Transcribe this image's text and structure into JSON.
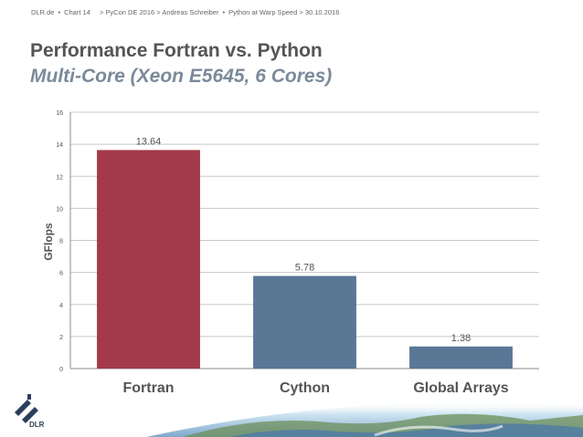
{
  "header": {
    "site": "DLR.de",
    "sep": "•",
    "chart_no": "Chart 14",
    "breadcrumb": "> PyCon DE 2016 > Andreas Schreiber",
    "talk": "Python at Warp Speed > 30.10.2016"
  },
  "slide": {
    "title": "Performance Fortran vs. Python",
    "subtitle": "Multi-Core (Xeon E5645, 6 Cores)"
  },
  "logo": {
    "text": "DLR",
    "icon": "dlr-logo-icon"
  },
  "chart_data": {
    "type": "bar",
    "categories": [
      "Fortran",
      "Cython",
      "Global Arrays"
    ],
    "values": [
      13.64,
      5.78,
      1.38
    ],
    "value_labels": [
      "13.64",
      "5.78",
      "1.38"
    ],
    "bar_colors": [
      "#a33a4b",
      "#5a7796",
      "#5a7796"
    ],
    "title": "",
    "xlabel": "",
    "ylabel": "GFlops",
    "ylim": [
      0,
      16
    ],
    "yticks": [
      0,
      2,
      4,
      6,
      8,
      10,
      12,
      14,
      16
    ],
    "grid": true,
    "legend": "none"
  }
}
